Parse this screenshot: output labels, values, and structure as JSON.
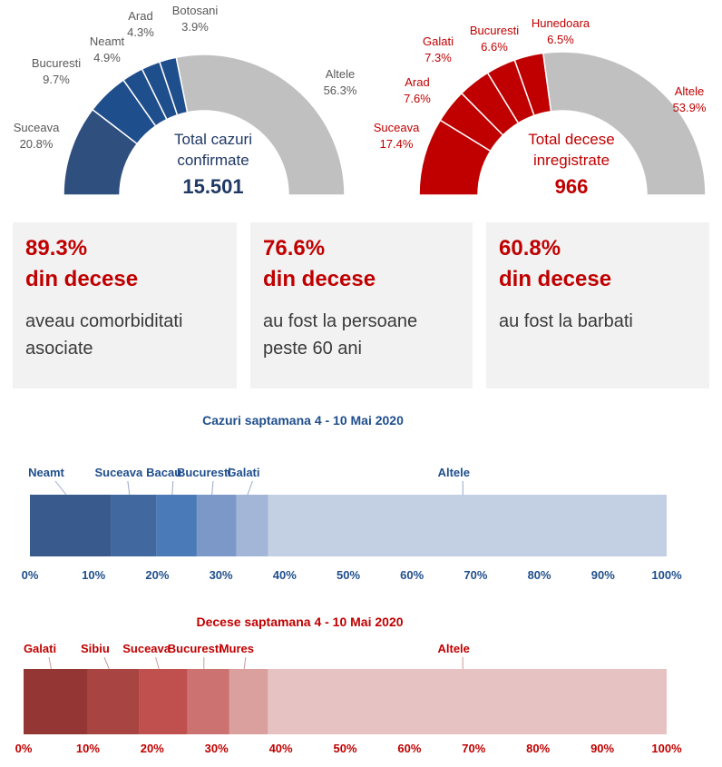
{
  "stat_cards": [
    {
      "percent": "89.3%",
      "subtitle": "din decese",
      "description": "aveau comorbiditati asociate"
    },
    {
      "percent": "76.6%",
      "subtitle": "din decese",
      "description": "au fost la persoane peste 60 ani"
    },
    {
      "percent": "60.8%",
      "subtitle": "din decese",
      "description": "au fost la barbati"
    }
  ],
  "chart_data": [
    {
      "type": "pie",
      "subtype": "half-donut",
      "center_label": "Total cazuri confirmate",
      "center_value": "15.501",
      "labels": [
        "Suceava",
        "Bucuresti",
        "Neamt",
        "Arad",
        "Botosani",
        "Altele"
      ],
      "values": [
        20.8,
        9.7,
        4.9,
        4.3,
        3.9,
        56.3
      ],
      "value_labels": [
        "20.8%",
        "9.7%",
        "4.9%",
        "4.3%",
        "3.9%",
        "56.3%"
      ],
      "colors": [
        "#2f4f7f",
        "#1f4e8c",
        "#1f4e8c",
        "#1f4e8c",
        "#1f4e8c",
        "#c0c0c0"
      ]
    },
    {
      "type": "pie",
      "subtype": "half-donut",
      "center_label": "Total decese inregistrate",
      "center_value": "966",
      "labels": [
        "Suceava",
        "Arad",
        "Galati",
        "Bucuresti",
        "Hunedoara",
        "Altele"
      ],
      "values": [
        17.4,
        7.6,
        7.3,
        6.6,
        6.5,
        53.9
      ],
      "value_labels": [
        "17.4%",
        "7.6%",
        "7.3%",
        "6.6%",
        "6.5%",
        "53.9%"
      ],
      "colors": [
        "#c00000",
        "#c00000",
        "#c00000",
        "#c00000",
        "#c00000",
        "#c0c0c0"
      ]
    },
    {
      "type": "bar",
      "subtype": "stacked-100-horizontal",
      "title": "Cazuri saptamana 4 - 10 Mai 2020",
      "categories": [
        "Neamt",
        "Suceava",
        "Bacau",
        "Bucuresti",
        "Galati",
        "Altele"
      ],
      "values": [
        12.8,
        7.1,
        6.3,
        6.2,
        5.0,
        62.6
      ],
      "colors": [
        "#385a8c",
        "#4169a0",
        "#4a7ab7",
        "#7b98c8",
        "#a3b6d8",
        "#c3cfe3"
      ],
      "xlim": [
        0,
        100
      ],
      "ticks": [
        "0%",
        "10%",
        "20%",
        "30%",
        "40%",
        "50%",
        "60%",
        "70%",
        "80%",
        "90%",
        "100%"
      ]
    },
    {
      "type": "bar",
      "subtype": "stacked-100-horizontal",
      "title": "Decese saptamana 4 - 10 Mai 2020",
      "categories": [
        "Galati",
        "Sibiu",
        "Suceava",
        "Bucuresti",
        "Mures",
        "Altele"
      ],
      "values": [
        10.0,
        8.0,
        7.5,
        6.5,
        6.0,
        62.0
      ],
      "colors": [
        "#943634",
        "#a84442",
        "#c0504d",
        "#cc7270",
        "#d9a09e",
        "#e6c3c2"
      ],
      "xlim": [
        0,
        100
      ],
      "ticks": [
        "0%",
        "10%",
        "20%",
        "30%",
        "40%",
        "50%",
        "60%",
        "70%",
        "80%",
        "90%",
        "100%"
      ]
    }
  ]
}
